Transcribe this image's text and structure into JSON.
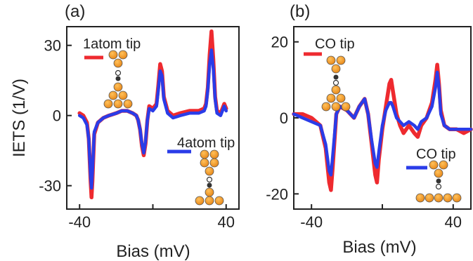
{
  "chart_data": [
    {
      "type": "line",
      "panel_label": "(a)",
      "xlabel": "Bias (mV)",
      "ylabel": "IETS (1/V)",
      "xlim": [
        -47,
        47
      ],
      "ylim": [
        -40,
        38
      ],
      "xticks": [
        -40,
        0,
        40
      ],
      "xtick_labels": [
        "-40",
        "",
        "40"
      ],
      "yticks": [
        -30,
        0,
        30
      ],
      "ytick_labels": [
        "-30",
        "0",
        "30"
      ],
      "series": [
        {
          "name": "1atom tip",
          "color": "#ee2a2f",
          "x": [
            -40,
            -38,
            -36,
            -35,
            -34,
            -33.5,
            -33,
            -32,
            -30,
            -27,
            -24,
            -20,
            -17,
            -14,
            -11,
            -9,
            -8,
            -7,
            -6,
            -5,
            -4,
            -3,
            -2,
            0,
            2,
            3,
            4,
            5,
            6,
            8,
            11,
            15,
            20,
            25,
            28,
            29,
            30,
            31,
            32,
            33,
            34,
            35,
            37,
            38,
            39,
            40
          ],
          "y": [
            1,
            0,
            -3,
            -10,
            -28,
            -35,
            -28,
            -8,
            -3,
            -1,
            0,
            1,
            2,
            2,
            1,
            0,
            -2,
            -6,
            -13,
            -17,
            -12,
            -2,
            4,
            3,
            5,
            13,
            22,
            19,
            8,
            2,
            0,
            1,
            2,
            2,
            3,
            5,
            12,
            26,
            36,
            24,
            8,
            2,
            1,
            3,
            5,
            3
          ]
        },
        {
          "name": "4atom tip",
          "color": "#2a3ce8",
          "x": [
            -40,
            -38,
            -36,
            -35,
            -34,
            -33.5,
            -33,
            -32,
            -30,
            -27,
            -24,
            -20,
            -17,
            -14,
            -11,
            -9,
            -8,
            -7,
            -6,
            -5,
            -4,
            -3,
            -2,
            0,
            2,
            3,
            4,
            5,
            6,
            8,
            11,
            15,
            20,
            25,
            28,
            29,
            30,
            31,
            32,
            33,
            34,
            35,
            37,
            38,
            39,
            40
          ],
          "y": [
            0,
            -1,
            -4,
            -10,
            -26,
            -31,
            -24,
            -7,
            -3,
            -1,
            0,
            1,
            2,
            2,
            1,
            0,
            -2,
            -6,
            -12,
            -16,
            -11,
            -2,
            3,
            2,
            4,
            11,
            19,
            17,
            7,
            1,
            -1,
            0,
            1,
            1,
            2,
            4,
            11,
            22,
            28,
            20,
            7,
            1,
            0,
            2,
            4,
            2
          ]
        }
      ],
      "legend": [
        "1atom tip",
        "4atom tip"
      ]
    },
    {
      "type": "line",
      "panel_label": "(b)",
      "xlabel": "Bias (mV)",
      "ylabel": "",
      "xlim": [
        -50,
        50
      ],
      "ylim": [
        -24,
        24
      ],
      "xticks": [
        -40,
        0,
        40
      ],
      "xtick_labels": [
        "-40",
        "",
        "40"
      ],
      "yticks": [
        -20,
        0,
        20
      ],
      "ytick_labels": [
        "-20",
        "0",
        "20"
      ],
      "series": [
        {
          "name": "CO tip",
          "color": "#ee2a2f",
          "x": [
            -50,
            -45,
            -40,
            -35,
            -32,
            -30,
            -29,
            -28,
            -26,
            -24,
            -20,
            -16,
            -13,
            -10,
            -8,
            -6,
            -4,
            -3,
            -2,
            0,
            2,
            4,
            5,
            6,
            8,
            10,
            12,
            15,
            18,
            20,
            22,
            25,
            28,
            30,
            31,
            32,
            33,
            35,
            38,
            42,
            46,
            50
          ],
          "y": [
            1,
            1,
            0,
            -2,
            -8,
            -17,
            -19,
            -13,
            1,
            3,
            2,
            0,
            3,
            5,
            1,
            -7,
            -15,
            -17,
            -11,
            -3,
            3,
            9,
            10,
            7,
            1,
            -2,
            -4,
            -2,
            -4,
            -5,
            -2,
            0,
            4,
            10,
            14,
            9,
            2,
            -2,
            -3,
            -3,
            -4,
            -3
          ]
        },
        {
          "name": "CO tip",
          "color": "#2a3ce8",
          "x": [
            -50,
            -45,
            -40,
            -35,
            -32,
            -30,
            -29,
            -28,
            -26,
            -24,
            -20,
            -16,
            -13,
            -10,
            -8,
            -6,
            -4,
            -3,
            -2,
            0,
            2,
            4,
            5,
            6,
            8,
            10,
            12,
            15,
            18,
            20,
            22,
            25,
            28,
            30,
            31,
            32,
            33,
            35,
            38,
            42,
            46,
            50
          ],
          "y": [
            1,
            0,
            -1,
            -2,
            -7,
            -14,
            -15,
            -10,
            1,
            3,
            2,
            0,
            3,
            5,
            1,
            -6,
            -12,
            -13,
            -9,
            -2,
            2,
            4,
            4,
            3,
            0,
            -1,
            -2,
            -1,
            -2,
            -3,
            -1,
            0,
            3,
            8,
            12,
            8,
            1,
            -2,
            -3,
            -3,
            -3,
            -3
          ]
        }
      ],
      "legend": [
        "CO tip",
        "CO tip"
      ]
    }
  ]
}
